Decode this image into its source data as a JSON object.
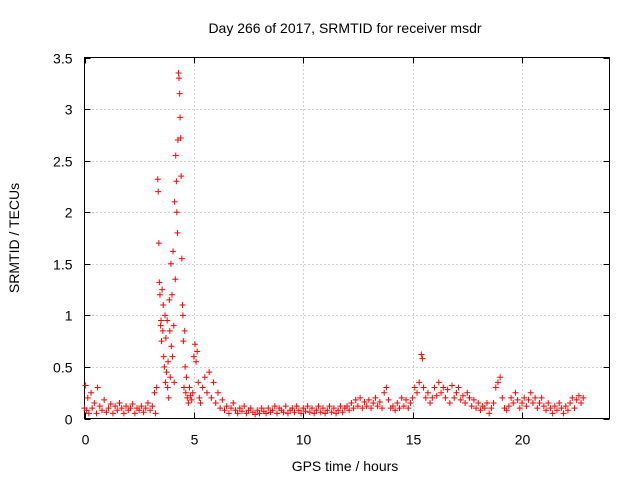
{
  "chart_data": {
    "type": "scatter",
    "title": "Day 266 of 2017, SRMTID for receiver msdr",
    "xlabel": "GPS time / hours",
    "ylabel": "SRMTID / TECUs",
    "xlim": [
      0,
      24
    ],
    "ylim": [
      0,
      3.5
    ],
    "xticks": [
      0,
      5,
      10,
      15,
      20
    ],
    "yticks": [
      0,
      0.5,
      1,
      1.5,
      2,
      2.5,
      3,
      3.5
    ],
    "ytick_labels": [
      "0",
      "0.5",
      "1",
      "1.5",
      "2",
      "2.5",
      "3",
      "3.5"
    ],
    "xtick_labels": [
      "0",
      "5",
      "10",
      "15",
      "20"
    ],
    "grid": true,
    "marker": "+",
    "color": "#ff0000",
    "series": [
      {
        "points": [
          [
            0.0,
            0.1
          ],
          [
            0.05,
            0.32
          ],
          [
            0.1,
            0.08
          ],
          [
            0.15,
            0.2
          ],
          [
            0.2,
            0.05
          ],
          [
            0.3,
            0.25
          ],
          [
            0.35,
            0.1
          ],
          [
            0.45,
            0.15
          ],
          [
            0.55,
            0.05
          ],
          [
            0.6,
            0.3
          ],
          [
            0.7,
            0.12
          ],
          [
            0.8,
            0.08
          ],
          [
            0.9,
            0.18
          ],
          [
            1.0,
            0.06
          ],
          [
            1.1,
            0.1
          ],
          [
            1.2,
            0.14
          ],
          [
            1.3,
            0.05
          ],
          [
            1.4,
            0.12
          ],
          [
            1.5,
            0.08
          ],
          [
            1.6,
            0.15
          ],
          [
            1.7,
            0.1
          ],
          [
            1.8,
            0.05
          ],
          [
            1.9,
            0.12
          ],
          [
            2.0,
            0.08
          ],
          [
            2.1,
            0.1
          ],
          [
            2.2,
            0.14
          ],
          [
            2.3,
            0.05
          ],
          [
            2.4,
            0.1
          ],
          [
            2.5,
            0.08
          ],
          [
            2.6,
            0.12
          ],
          [
            2.7,
            0.06
          ],
          [
            2.8,
            0.1
          ],
          [
            2.9,
            0.15
          ],
          [
            3.0,
            0.08
          ],
          [
            3.1,
            0.12
          ],
          [
            3.2,
            0.25
          ],
          [
            3.25,
            0.05
          ],
          [
            3.3,
            0.3
          ],
          [
            3.35,
            2.32
          ],
          [
            3.37,
            2.2
          ],
          [
            3.4,
            1.7
          ],
          [
            3.42,
            1.32
          ],
          [
            3.45,
            1.2
          ],
          [
            3.48,
            0.9
          ],
          [
            3.5,
            0.95
          ],
          [
            3.52,
            0.75
          ],
          [
            3.55,
            1.25
          ],
          [
            3.58,
            0.85
          ],
          [
            3.6,
            1.1
          ],
          [
            3.62,
            0.6
          ],
          [
            3.65,
            0.5
          ],
          [
            3.68,
            1.0
          ],
          [
            3.7,
            0.35
          ],
          [
            3.72,
            0.78
          ],
          [
            3.75,
            0.45
          ],
          [
            3.78,
            0.95
          ],
          [
            3.8,
            0.3
          ],
          [
            3.82,
            0.55
          ],
          [
            3.85,
            0.2
          ],
          [
            3.88,
            1.15
          ],
          [
            3.9,
            0.85
          ],
          [
            3.92,
            0.4
          ],
          [
            3.95,
            1.5
          ],
          [
            3.97,
            0.7
          ],
          [
            4.0,
            1.2
          ],
          [
            4.02,
            0.6
          ],
          [
            4.05,
            1.62
          ],
          [
            4.08,
            0.9
          ],
          [
            4.1,
            0.35
          ],
          [
            4.12,
            2.1
          ],
          [
            4.15,
            1.35
          ],
          [
            4.17,
            2.55
          ],
          [
            4.2,
            2.3
          ],
          [
            4.22,
            2.0
          ],
          [
            4.25,
            1.8
          ],
          [
            4.27,
            2.7
          ],
          [
            4.3,
            3.35
          ],
          [
            4.32,
            3.3
          ],
          [
            4.35,
            3.15
          ],
          [
            4.37,
            2.92
          ],
          [
            4.4,
            2.72
          ],
          [
            4.42,
            2.35
          ],
          [
            4.45,
            1.55
          ],
          [
            4.48,
            1.1
          ],
          [
            4.5,
            1.0
          ],
          [
            4.52,
            0.75
          ],
          [
            4.55,
            0.3
          ],
          [
            4.58,
            0.85
          ],
          [
            4.6,
            0.5
          ],
          [
            4.63,
            0.25
          ],
          [
            4.66,
            0.4
          ],
          [
            4.7,
            0.2
          ],
          [
            4.75,
            0.15
          ],
          [
            4.8,
            0.3
          ],
          [
            4.85,
            0.22
          ],
          [
            4.9,
            0.18
          ],
          [
            4.95,
            0.25
          ],
          [
            5.0,
            0.6
          ],
          [
            5.05,
            0.72
          ],
          [
            5.1,
            0.55
          ],
          [
            5.15,
            0.65
          ],
          [
            5.2,
            0.35
          ],
          [
            5.25,
            0.2
          ],
          [
            5.3,
            0.15
          ],
          [
            5.4,
            0.3
          ],
          [
            5.5,
            0.4
          ],
          [
            5.6,
            0.25
          ],
          [
            5.7,
            0.45
          ],
          [
            5.8,
            0.2
          ],
          [
            5.9,
            0.35
          ],
          [
            6.0,
            0.15
          ],
          [
            6.1,
            0.25
          ],
          [
            6.2,
            0.1
          ],
          [
            6.3,
            0.18
          ],
          [
            6.4,
            0.08
          ],
          [
            6.5,
            0.12
          ],
          [
            6.6,
            0.05
          ],
          [
            6.7,
            0.1
          ],
          [
            6.8,
            0.15
          ],
          [
            6.9,
            0.08
          ],
          [
            7.0,
            0.05
          ],
          [
            7.1,
            0.1
          ],
          [
            7.2,
            0.07
          ],
          [
            7.3,
            0.12
          ],
          [
            7.4,
            0.05
          ],
          [
            7.5,
            0.08
          ],
          [
            7.6,
            0.1
          ],
          [
            7.7,
            0.06
          ],
          [
            7.8,
            0.04
          ],
          [
            7.9,
            0.08
          ],
          [
            8.0,
            0.05
          ],
          [
            8.1,
            0.1
          ],
          [
            8.2,
            0.07
          ],
          [
            8.3,
            0.05
          ],
          [
            8.4,
            0.1
          ],
          [
            8.5,
            0.06
          ],
          [
            8.6,
            0.08
          ],
          [
            8.7,
            0.12
          ],
          [
            8.8,
            0.05
          ],
          [
            8.9,
            0.1
          ],
          [
            9.0,
            0.08
          ],
          [
            9.1,
            0.06
          ],
          [
            9.2,
            0.12
          ],
          [
            9.3,
            0.05
          ],
          [
            9.4,
            0.08
          ],
          [
            9.5,
            0.1
          ],
          [
            9.6,
            0.06
          ],
          [
            9.7,
            0.12
          ],
          [
            9.8,
            0.08
          ],
          [
            9.9,
            0.05
          ],
          [
            10.0,
            0.1
          ],
          [
            10.1,
            0.07
          ],
          [
            10.2,
            0.12
          ],
          [
            10.3,
            0.06
          ],
          [
            10.4,
            0.1
          ],
          [
            10.5,
            0.05
          ],
          [
            10.6,
            0.08
          ],
          [
            10.7,
            0.12
          ],
          [
            10.8,
            0.06
          ],
          [
            10.9,
            0.1
          ],
          [
            11.0,
            0.05
          ],
          [
            11.1,
            0.08
          ],
          [
            11.2,
            0.12
          ],
          [
            11.3,
            0.06
          ],
          [
            11.4,
            0.1
          ],
          [
            11.5,
            0.05
          ],
          [
            11.6,
            0.08
          ],
          [
            11.7,
            0.12
          ],
          [
            11.8,
            0.06
          ],
          [
            11.9,
            0.1
          ],
          [
            12.0,
            0.12
          ],
          [
            12.1,
            0.08
          ],
          [
            12.2,
            0.15
          ],
          [
            12.3,
            0.1
          ],
          [
            12.4,
            0.18
          ],
          [
            12.5,
            0.12
          ],
          [
            12.6,
            0.2
          ],
          [
            12.7,
            0.1
          ],
          [
            12.8,
            0.16
          ],
          [
            12.9,
            0.12
          ],
          [
            13.0,
            0.18
          ],
          [
            13.1,
            0.1
          ],
          [
            13.2,
            0.15
          ],
          [
            13.3,
            0.2
          ],
          [
            13.4,
            0.12
          ],
          [
            13.5,
            0.16
          ],
          [
            13.6,
            0.1
          ],
          [
            13.7,
            0.25
          ],
          [
            13.8,
            0.3
          ],
          [
            13.9,
            0.18
          ],
          [
            14.0,
            0.1
          ],
          [
            14.1,
            0.12
          ],
          [
            14.2,
            0.08
          ],
          [
            14.3,
            0.15
          ],
          [
            14.4,
            0.1
          ],
          [
            14.5,
            0.2
          ],
          [
            14.6,
            0.12
          ],
          [
            14.7,
            0.18
          ],
          [
            14.8,
            0.1
          ],
          [
            14.9,
            0.15
          ],
          [
            15.0,
            0.2
          ],
          [
            15.1,
            0.3
          ],
          [
            15.2,
            0.25
          ],
          [
            15.3,
            0.35
          ],
          [
            15.4,
            0.62
          ],
          [
            15.45,
            0.58
          ],
          [
            15.5,
            0.3
          ],
          [
            15.6,
            0.2
          ],
          [
            15.7,
            0.25
          ],
          [
            15.8,
            0.15
          ],
          [
            15.9,
            0.2
          ],
          [
            16.0,
            0.3
          ],
          [
            16.1,
            0.22
          ],
          [
            16.2,
            0.35
          ],
          [
            16.3,
            0.25
          ],
          [
            16.4,
            0.3
          ],
          [
            16.5,
            0.2
          ],
          [
            16.6,
            0.28
          ],
          [
            16.7,
            0.15
          ],
          [
            16.8,
            0.32
          ],
          [
            16.9,
            0.2
          ],
          [
            17.0,
            0.25
          ],
          [
            17.1,
            0.3
          ],
          [
            17.2,
            0.18
          ],
          [
            17.3,
            0.22
          ],
          [
            17.4,
            0.15
          ],
          [
            17.5,
            0.25
          ],
          [
            17.6,
            0.2
          ],
          [
            17.7,
            0.12
          ],
          [
            17.8,
            0.18
          ],
          [
            17.9,
            0.1
          ],
          [
            18.0,
            0.15
          ],
          [
            18.1,
            0.08
          ],
          [
            18.2,
            0.12
          ],
          [
            18.3,
            0.1
          ],
          [
            18.4,
            0.15
          ],
          [
            18.5,
            0.05
          ],
          [
            18.6,
            0.1
          ],
          [
            18.7,
            0.15
          ],
          [
            18.8,
            0.3
          ],
          [
            18.9,
            0.35
          ],
          [
            19.0,
            0.4
          ],
          [
            19.1,
            0.2
          ],
          [
            19.2,
            0.1
          ],
          [
            19.3,
            0.08
          ],
          [
            19.4,
            0.12
          ],
          [
            19.5,
            0.2
          ],
          [
            19.6,
            0.15
          ],
          [
            19.7,
            0.25
          ],
          [
            19.8,
            0.18
          ],
          [
            19.9,
            0.1
          ],
          [
            20.0,
            0.15
          ],
          [
            20.1,
            0.2
          ],
          [
            20.2,
            0.12
          ],
          [
            20.3,
            0.18
          ],
          [
            20.4,
            0.25
          ],
          [
            20.5,
            0.15
          ],
          [
            20.6,
            0.2
          ],
          [
            20.7,
            0.1
          ],
          [
            20.8,
            0.15
          ],
          [
            20.9,
            0.2
          ],
          [
            21.0,
            0.12
          ],
          [
            21.1,
            0.08
          ],
          [
            21.2,
            0.15
          ],
          [
            21.3,
            0.1
          ],
          [
            21.4,
            0.05
          ],
          [
            21.5,
            0.12
          ],
          [
            21.6,
            0.08
          ],
          [
            21.7,
            0.15
          ],
          [
            21.8,
            0.1
          ],
          [
            21.9,
            0.05
          ],
          [
            22.0,
            0.12
          ],
          [
            22.1,
            0.08
          ],
          [
            22.2,
            0.15
          ],
          [
            22.3,
            0.2
          ],
          [
            22.4,
            0.1
          ],
          [
            22.5,
            0.18
          ],
          [
            22.6,
            0.22
          ],
          [
            22.7,
            0.15
          ],
          [
            22.8,
            0.2
          ]
        ]
      }
    ]
  }
}
